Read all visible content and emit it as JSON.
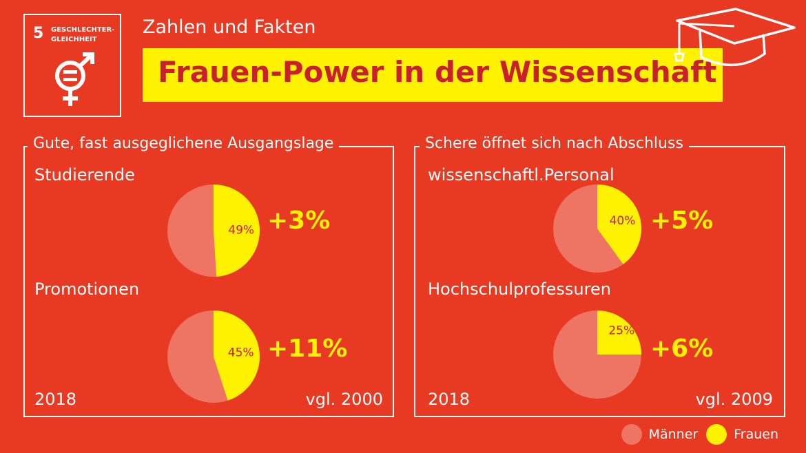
{
  "badge": {
    "number": "5",
    "label": "GESCHLECHTER-GLEICHHEIT",
    "icon": "gender-equality-icon"
  },
  "kicker": "Zahlen und Fakten",
  "title": "Frauen-Power in der Wissenschaft",
  "colors": {
    "background": "#e83a22",
    "maenner": "#ee7464",
    "frauen": "#fff200",
    "title_text": "#c8202d"
  },
  "chart_data": [
    {
      "type": "pie",
      "group": "Gute, fast ausgeglichene Ausgangslage",
      "title": "Studierende",
      "categories": [
        "Männer",
        "Frauen"
      ],
      "values": [
        51,
        49
      ],
      "label": "49%",
      "change": "+3%",
      "year": "2018",
      "compare": "vgl. 2000"
    },
    {
      "type": "pie",
      "group": "Gute, fast ausgeglichene Ausgangslage",
      "title": "Promotionen",
      "categories": [
        "Männer",
        "Frauen"
      ],
      "values": [
        55,
        45
      ],
      "label": "45%",
      "change": "+11%",
      "year": "2018",
      "compare": "vgl. 2000"
    },
    {
      "type": "pie",
      "group": "Schere öffnet sich nach Abschluss",
      "title": "wissenschaftl.Personal",
      "categories": [
        "Männer",
        "Frauen"
      ],
      "values": [
        60,
        40
      ],
      "label": "40%",
      "change": "+5%",
      "year": "2018",
      "compare": "vgl. 2009"
    },
    {
      "type": "pie",
      "group": "Schere öffnet sich nach Abschluss",
      "title": "Hochschulprofessuren",
      "categories": [
        "Männer",
        "Frauen"
      ],
      "values": [
        75,
        25
      ],
      "label": "25%",
      "change": "+6%",
      "year": "2018",
      "compare": "vgl. 2009"
    }
  ],
  "panels": [
    {
      "heading": "Gute, fast ausgeglichene Ausgangslage",
      "year": "2018",
      "compare": "vgl. 2000"
    },
    {
      "heading": "Schere öffnet sich nach Abschluss",
      "year": "2018",
      "compare": "vgl. 2009"
    }
  ],
  "legend": [
    {
      "label": "Männer"
    },
    {
      "label": "Frauen"
    }
  ],
  "decoration": {
    "cap_icon": "graduation-cap-icon"
  }
}
